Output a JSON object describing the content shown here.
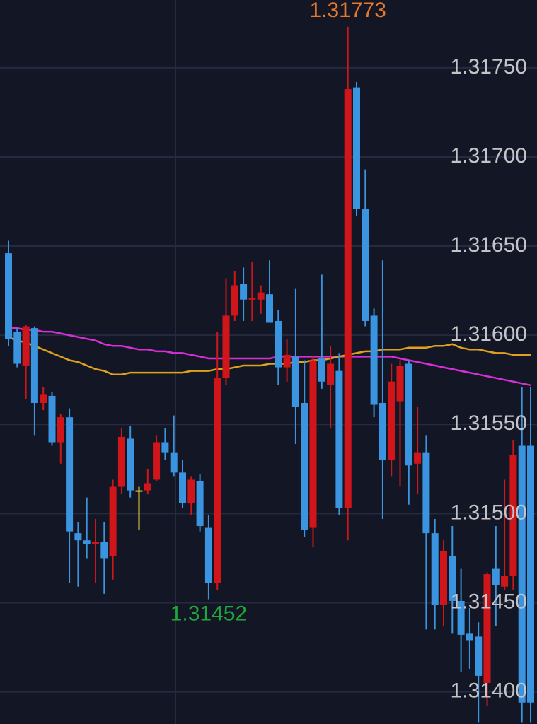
{
  "chart_data": {
    "type": "candlestick",
    "ylim": [
      1.31382,
      1.31788
    ],
    "yticks": [
      {
        "value": 1.314,
        "label": "1.31400"
      },
      {
        "value": 1.3145,
        "label": "1.31450"
      },
      {
        "value": 1.315,
        "label": "1.31500"
      },
      {
        "value": 1.3155,
        "label": "1.31550"
      },
      {
        "value": 1.316,
        "label": "1.31600"
      },
      {
        "value": 1.3165,
        "label": "1.31650"
      },
      {
        "value": 1.317,
        "label": "1.31700"
      },
      {
        "value": 1.3175,
        "label": "1.31750"
      }
    ],
    "grid": true,
    "up_color": "#d0161b",
    "down_color": "#3a94e0",
    "neutral_color": "#e6d23a",
    "open": [
      1.31646,
      1.31602,
      1.31583,
      1.31604,
      1.31562,
      1.31566,
      1.3154,
      1.31554,
      1.31489,
      1.31485,
      1.31483,
      1.31484,
      1.31476,
      1.31515,
      1.31542,
      1.31513,
      1.31513,
      1.31519,
      1.3154,
      1.31534,
      1.31523,
      1.31506,
      1.31518,
      1.31492,
      1.31461,
      1.31576,
      1.31611,
      1.31629,
      1.3162,
      1.3162,
      1.31623,
      1.31608,
      1.31582,
      1.31588,
      1.31562,
      1.31492,
      1.31587,
      1.31572,
      1.3158,
      1.31503,
      1.31739,
      1.31671,
      1.31611,
      1.31562,
      1.3153,
      1.31563,
      1.31584,
      1.31528,
      1.31534,
      1.31489,
      1.31449,
      1.31476,
      1.31451,
      1.31433,
      1.31431,
      1.31405,
      1.31469,
      1.31459,
      1.31465,
      1.31538,
      1.31538
    ],
    "high": [
      1.31653,
      1.31604,
      1.31606,
      1.31605,
      1.31571,
      1.31568,
      1.31556,
      1.31559,
      1.31495,
      1.31509,
      1.31497,
      1.31495,
      1.31519,
      1.31548,
      1.31549,
      1.31515,
      1.31525,
      1.31544,
      1.31548,
      1.31555,
      1.3153,
      1.31521,
      1.31522,
      1.31499,
      1.31602,
      1.31632,
      1.31636,
      1.31638,
      1.31641,
      1.31628,
      1.31642,
      1.31614,
      1.31598,
      1.31626,
      1.31586,
      1.31588,
      1.31634,
      1.31594,
      1.3159,
      1.31773,
      1.31742,
      1.31693,
      1.31615,
      1.31642,
      1.31584,
      1.31586,
      1.31586,
      1.3156,
      1.31544,
      1.31497,
      1.31485,
      1.31493,
      1.31469,
      1.31447,
      1.31439,
      1.31467,
      1.31493,
      1.31519,
      1.31541,
      1.31571,
      1.31571
    ],
    "low": [
      1.31594,
      1.31582,
      1.31564,
      1.31544,
      1.31558,
      1.31538,
      1.31528,
      1.31461,
      1.31459,
      1.31475,
      1.31461,
      1.31455,
      1.31463,
      1.31511,
      1.31509,
      1.31491,
      1.31511,
      1.31518,
      1.3153,
      1.31521,
      1.31503,
      1.31499,
      1.3149,
      1.31452,
      1.31457,
      1.31572,
      1.31608,
      1.31608,
      1.31608,
      1.31612,
      1.31607,
      1.31572,
      1.31574,
      1.31539,
      1.31487,
      1.31481,
      1.3157,
      1.31548,
      1.31499,
      1.31485,
      1.31667,
      1.31605,
      1.31554,
      1.31497,
      1.31521,
      1.31515,
      1.31505,
      1.31511,
      1.31435,
      1.31435,
      1.31437,
      1.31433,
      1.31411,
      1.31413,
      1.31383,
      1.31392,
      1.31437,
      1.31457,
      1.31457,
      1.31383,
      1.31383
    ],
    "close": [
      1.31598,
      1.31584,
      1.31605,
      1.31562,
      1.31567,
      1.3154,
      1.31554,
      1.3149,
      1.31485,
      1.31483,
      1.31484,
      1.31475,
      1.31515,
      1.31543,
      1.31513,
      1.31513,
      1.31517,
      1.3154,
      1.31534,
      1.31523,
      1.31506,
      1.31519,
      1.31493,
      1.31461,
      1.31576,
      1.31611,
      1.31628,
      1.3162,
      1.31621,
      1.31624,
      1.31607,
      1.31582,
      1.31589,
      1.3156,
      1.31491,
      1.31586,
      1.31574,
      1.31584,
      1.31503,
      1.31738,
      1.31671,
      1.31608,
      1.31561,
      1.3153,
      1.31574,
      1.31583,
      1.31527,
      1.31534,
      1.31489,
      1.31449,
      1.31479,
      1.31451,
      1.31432,
      1.31429,
      1.31409,
      1.31466,
      1.3146,
      1.31465,
      1.31533,
      1.31394,
      1.31394
    ],
    "overlays": [
      {
        "color": "#d62fd6",
        "values": [
          1.31604,
          1.31604,
          1.31603,
          1.31603,
          1.31602,
          1.31602,
          1.31601,
          1.316,
          1.31599,
          1.31598,
          1.31597,
          1.31595,
          1.31594,
          1.31594,
          1.31593,
          1.31592,
          1.31592,
          1.31591,
          1.31591,
          1.3159,
          1.3159,
          1.31589,
          1.31588,
          1.31587,
          1.31587,
          1.31587,
          1.31587,
          1.31587,
          1.31587,
          1.31587,
          1.31587,
          1.31588,
          1.31588,
          1.31588,
          1.31588,
          1.31588,
          1.31588,
          1.31588,
          1.31588,
          1.31588,
          1.31588,
          1.31588,
          1.31588,
          1.31588,
          1.31588,
          1.31587,
          1.31586,
          1.31585,
          1.31584,
          1.31583,
          1.31582,
          1.31581,
          1.3158,
          1.31579,
          1.31578,
          1.31577,
          1.31576,
          1.31575,
          1.31574,
          1.31573,
          1.31572
        ]
      },
      {
        "color": "#e0a21e",
        "values": [
          1.31599,
          1.31597,
          1.31596,
          1.31594,
          1.31592,
          1.3159,
          1.31588,
          1.31586,
          1.31585,
          1.31583,
          1.31581,
          1.3158,
          1.31578,
          1.31578,
          1.31579,
          1.31579,
          1.31579,
          1.31579,
          1.31579,
          1.31579,
          1.31579,
          1.3158,
          1.3158,
          1.3158,
          1.31581,
          1.31581,
          1.31582,
          1.31583,
          1.31583,
          1.31583,
          1.31584,
          1.31584,
          1.31584,
          1.31585,
          1.31585,
          1.31586,
          1.31586,
          1.31587,
          1.31588,
          1.31589,
          1.3159,
          1.31591,
          1.31591,
          1.31592,
          1.31592,
          1.31592,
          1.31593,
          1.31593,
          1.31593,
          1.31594,
          1.31594,
          1.31595,
          1.31593,
          1.31592,
          1.31592,
          1.31591,
          1.3159,
          1.3159,
          1.31589,
          1.31589,
          1.31589
        ]
      }
    ],
    "annotations": [
      {
        "label": "1.31773",
        "value": 1.31773,
        "color": "#e8782a"
      },
      {
        "label": "1.31452",
        "value": 1.31452,
        "color": "#1fa83a"
      }
    ]
  }
}
